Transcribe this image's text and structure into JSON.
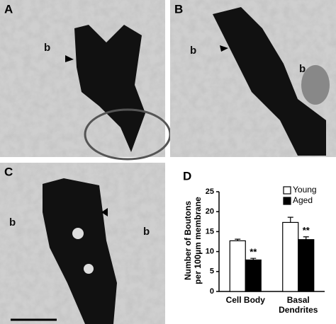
{
  "panels": [
    {
      "label": "A",
      "annotations": [
        "b"
      ]
    },
    {
      "label": "B",
      "annotations": [
        "b",
        "b"
      ]
    },
    {
      "label": "C",
      "annotations": [
        "b",
        "b"
      ]
    }
  ],
  "chart_data": {
    "type": "bar",
    "label": "D",
    "y_label": [
      "Number of Boutons",
      "per 100µm membrane"
    ],
    "categories": [
      "Cell Body",
      "Basal Dendrites"
    ],
    "series": [
      {
        "name": "Young",
        "color": "#ffffff",
        "values": [
          12.7,
          17.3
        ],
        "errors": [
          0.4,
          1.3
        ]
      },
      {
        "name": "Aged",
        "color": "#000000",
        "values": [
          7.9,
          13.0
        ],
        "errors": [
          0.4,
          0.7
        ],
        "significance": [
          "**",
          "**"
        ]
      }
    ],
    "ylim": [
      0,
      25
    ],
    "yticks": [
      0,
      5,
      10,
      15,
      20,
      25
    ],
    "legend": "top-right"
  }
}
